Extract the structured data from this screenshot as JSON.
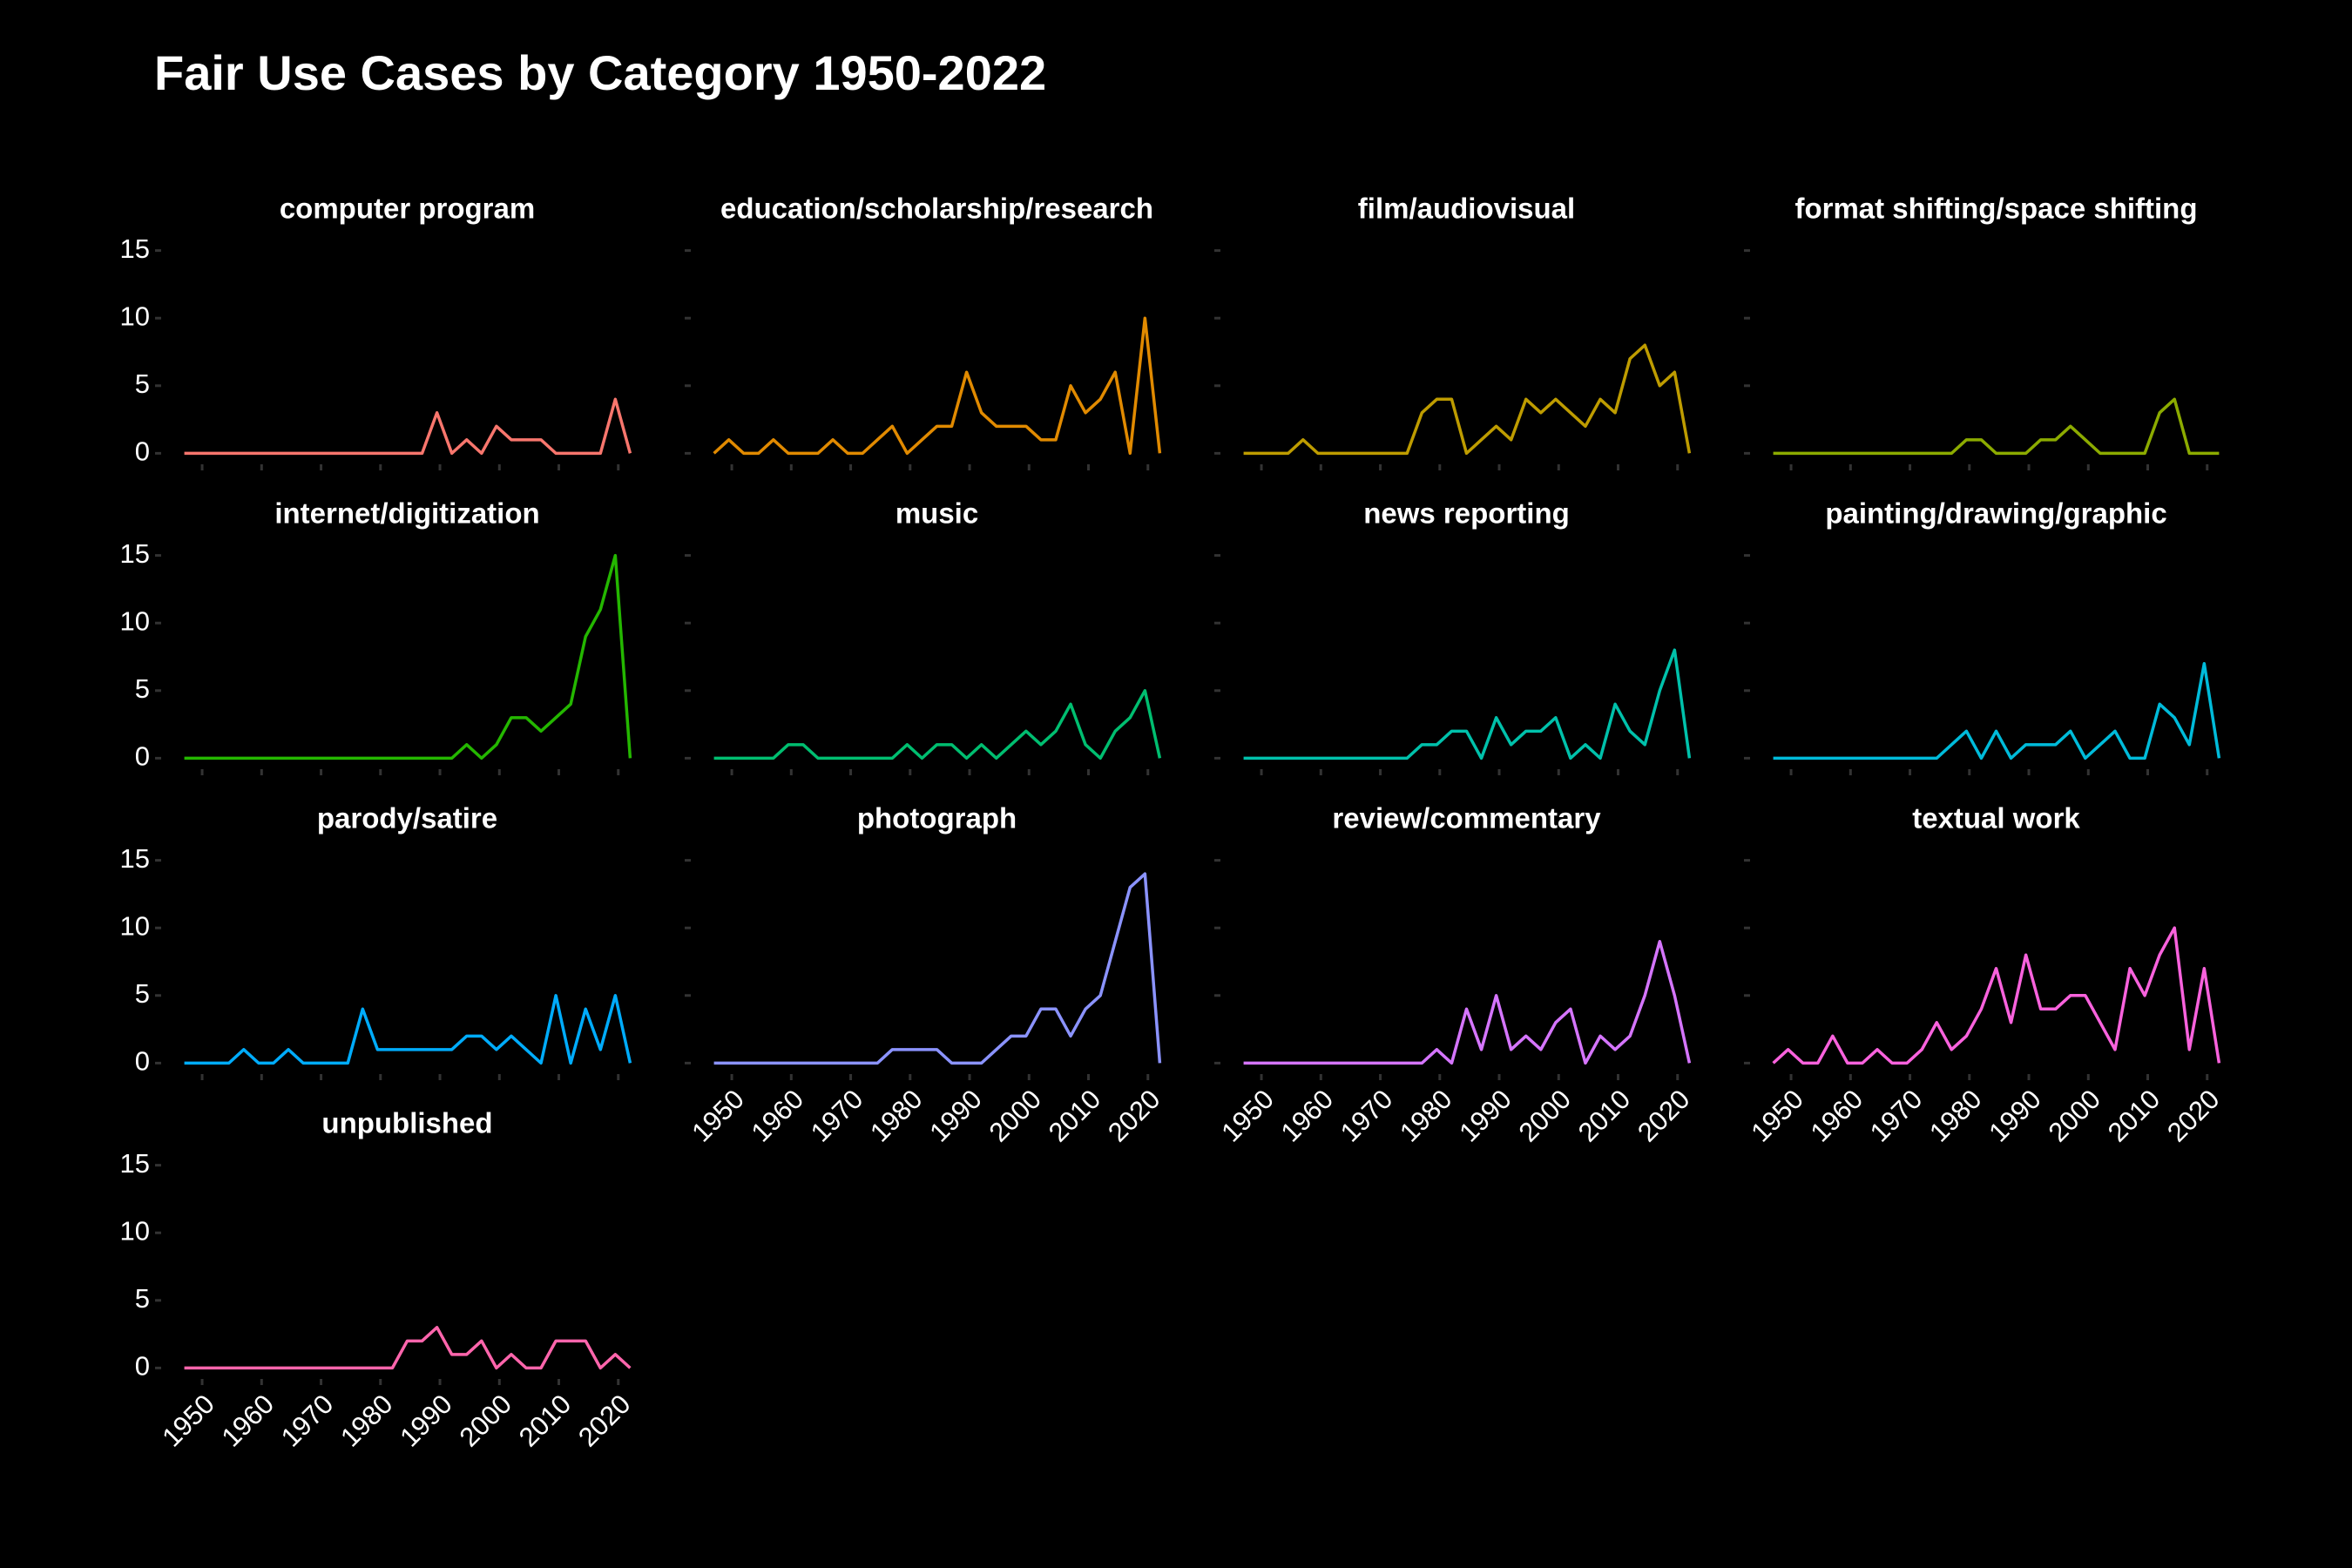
{
  "chart_data": {
    "type": "line",
    "title": "Fair Use Cases by Category 1950-2022",
    "facets": true,
    "facet_columns": 4,
    "x": [
      1947,
      1949.5,
      1952,
      1954.5,
      1957,
      1959.5,
      1962,
      1964.5,
      1967,
      1969.5,
      1972,
      1974.5,
      1977,
      1979.5,
      1982,
      1984.5,
      1987,
      1989.5,
      1992,
      1994.5,
      1997,
      1999.5,
      2002,
      2004.5,
      2007,
      2009.5,
      2012,
      2014.5,
      2017,
      2019.5,
      2022
    ],
    "xlim": [
      1943.25,
      2025.75
    ],
    "xticks": [
      1950,
      1960,
      1970,
      1980,
      1990,
      2000,
      2010,
      2020
    ],
    "ylim": [
      -0.75,
      15.75
    ],
    "yticks": [
      0,
      5,
      10,
      15
    ],
    "series": [
      {
        "name": "computer program",
        "color": "#F8766D",
        "values": [
          0,
          0,
          0,
          0,
          0,
          0,
          0,
          0,
          0,
          0,
          0,
          0,
          0,
          0,
          0,
          0,
          0,
          3,
          0,
          1,
          0,
          2,
          1,
          1,
          1,
          0,
          0,
          0,
          0,
          4,
          0
        ]
      },
      {
        "name": "education/scholarship/research",
        "color": "#E18A00",
        "values": [
          0,
          1,
          0,
          0,
          1,
          0,
          0,
          0,
          1,
          0,
          0,
          1,
          2,
          0,
          1,
          2,
          2,
          6,
          3,
          2,
          2,
          2,
          1,
          1,
          5,
          3,
          4,
          6,
          0,
          10,
          0
        ]
      },
      {
        "name": "film/audiovisual",
        "color": "#BE9C00",
        "values": [
          0,
          0,
          0,
          0,
          1,
          0,
          0,
          0,
          0,
          0,
          0,
          0,
          3,
          4,
          4,
          0,
          1,
          2,
          1,
          4,
          3,
          4,
          3,
          2,
          4,
          3,
          7,
          8,
          5,
          6,
          0
        ]
      },
      {
        "name": "format shifting/space shifting",
        "color": "#8CAB00",
        "values": [
          0,
          0,
          0,
          0,
          0,
          0,
          0,
          0,
          0,
          0,
          0,
          0,
          0,
          1,
          1,
          0,
          0,
          0,
          1,
          1,
          2,
          1,
          0,
          0,
          0,
          0,
          3,
          4,
          0,
          0,
          0
        ]
      },
      {
        "name": "internet/digitization",
        "color": "#24B700",
        "values": [
          0,
          0,
          0,
          0,
          0,
          0,
          0,
          0,
          0,
          0,
          0,
          0,
          0,
          0,
          0,
          0,
          0,
          0,
          0,
          1,
          0,
          1,
          3,
          3,
          2,
          3,
          4,
          9,
          11,
          15,
          0
        ]
      },
      {
        "name": "music",
        "color": "#00BE70",
        "values": [
          0,
          0,
          0,
          0,
          0,
          1,
          1,
          0,
          0,
          0,
          0,
          0,
          0,
          1,
          0,
          1,
          1,
          0,
          1,
          0,
          1,
          2,
          1,
          2,
          4,
          1,
          0,
          2,
          3,
          5,
          0
        ]
      },
      {
        "name": "news reporting",
        "color": "#00C1AB",
        "values": [
          0,
          0,
          0,
          0,
          0,
          0,
          0,
          0,
          0,
          0,
          0,
          0,
          1,
          1,
          2,
          2,
          0,
          3,
          1,
          2,
          2,
          3,
          0,
          1,
          0,
          4,
          2,
          1,
          5,
          8,
          0
        ]
      },
      {
        "name": "painting/drawing/graphic",
        "color": "#00BBDA",
        "values": [
          0,
          0,
          0,
          0,
          0,
          0,
          0,
          0,
          0,
          0,
          0,
          0,
          1,
          2,
          0,
          2,
          0,
          1,
          1,
          1,
          2,
          0,
          1,
          2,
          0,
          0,
          4,
          3,
          1,
          7,
          0
        ]
      },
      {
        "name": "parody/satire",
        "color": "#00ACFC",
        "values": [
          0,
          0,
          0,
          0,
          1,
          0,
          0,
          1,
          0,
          0,
          0,
          0,
          4,
          1,
          1,
          1,
          1,
          1,
          1,
          2,
          2,
          1,
          2,
          1,
          0,
          5,
          0,
          4,
          1,
          5,
          0
        ]
      },
      {
        "name": "photograph",
        "color": "#8B93FF",
        "values": [
          0,
          0,
          0,
          0,
          0,
          0,
          0,
          0,
          0,
          0,
          0,
          0,
          1,
          1,
          1,
          1,
          0,
          0,
          0,
          1,
          2,
          2,
          4,
          4,
          2,
          4,
          5,
          9,
          13,
          14,
          0
        ]
      },
      {
        "name": "review/commentary",
        "color": "#D575FE",
        "values": [
          0,
          0,
          0,
          0,
          0,
          0,
          0,
          0,
          0,
          0,
          0,
          0,
          0,
          1,
          0,
          4,
          1,
          5,
          1,
          2,
          1,
          3,
          4,
          0,
          2,
          1,
          2,
          5,
          9,
          5,
          0
        ]
      },
      {
        "name": "textual work",
        "color": "#F962DD",
        "values": [
          0,
          1,
          0,
          0,
          2,
          0,
          0,
          1,
          0,
          0,
          1,
          3,
          1,
          2,
          4,
          7,
          3,
          8,
          4,
          4,
          5,
          5,
          3,
          1,
          7,
          5,
          8,
          10,
          1,
          7,
          0
        ]
      },
      {
        "name": "unpublished",
        "color": "#FF65AC",
        "values": [
          0,
          0,
          0,
          0,
          0,
          0,
          0,
          0,
          0,
          0,
          0,
          0,
          0,
          0,
          0,
          2,
          2,
          3,
          1,
          1,
          2,
          0,
          1,
          0,
          0,
          2,
          2,
          2,
          0,
          1,
          0
        ]
      }
    ]
  }
}
